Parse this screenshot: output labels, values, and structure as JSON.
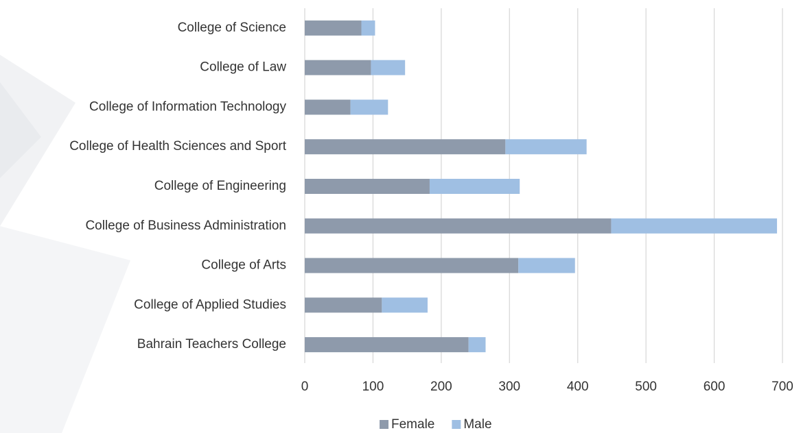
{
  "chart_data": {
    "type": "stacked-barh",
    "categories": [
      "College of Science",
      "College of Law",
      "College of Information Technology",
      "College of Health Sciences and Sport",
      "College of Engineering",
      "College of Business Administration",
      "College of Arts",
      "College of Applied Studies",
      "Bahrain Teachers College"
    ],
    "series": [
      {
        "name": "Female",
        "color": "#8e9aab",
        "values": [
          83,
          97,
          67,
          294,
          183,
          449,
          313,
          113,
          240
        ]
      },
      {
        "name": "Male",
        "color": "#9fbfe3",
        "values": [
          20,
          50,
          55,
          119,
          132,
          243,
          83,
          67,
          25
        ]
      }
    ],
    "xlim": [
      0,
      700
    ],
    "xticks": [
      0,
      100,
      200,
      300,
      400,
      500,
      600,
      700
    ],
    "grid": true,
    "legend": "bottom"
  }
}
